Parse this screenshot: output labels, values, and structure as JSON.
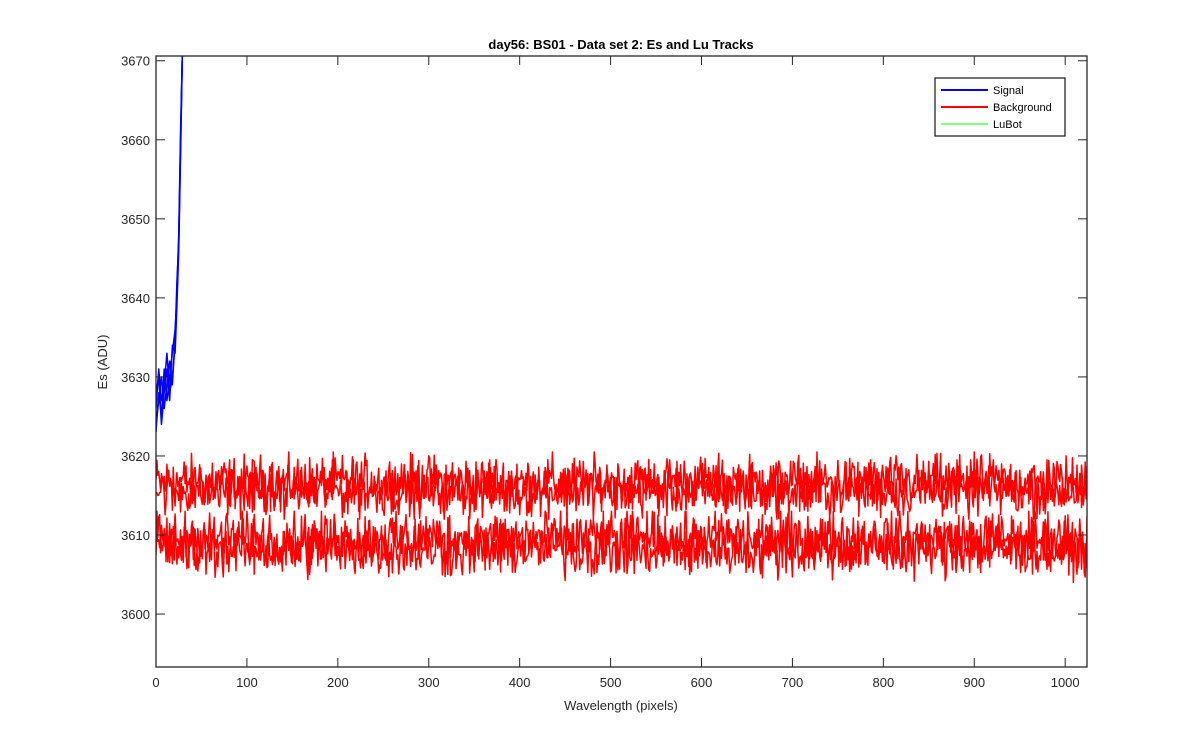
{
  "chart_data": {
    "type": "line",
    "title": "day56: BS01 - Data set 2: Es and Lu Tracks",
    "xlabel": "Wavelength (pixels)",
    "ylabel": "Es (ADU)",
    "xlim": [
      0,
      1024
    ],
    "ylim": [
      3593.3,
      3670.6
    ],
    "xticks": [
      0,
      100,
      200,
      300,
      400,
      500,
      600,
      700,
      800,
      900,
      1000
    ],
    "yticks": [
      3600,
      3610,
      3620,
      3630,
      3640,
      3650,
      3660,
      3670
    ],
    "grid": false,
    "legend_position": "top-right",
    "legend": [
      {
        "label": "Signal",
        "color": "#0000ff"
      },
      {
        "label": "Background",
        "color": "#ff0000"
      },
      {
        "label": "LuBot",
        "color": "#00ff00"
      }
    ],
    "series": [
      {
        "name": "Signal",
        "color": "#0000ff",
        "lines": [
          {
            "x": [
              0,
              3,
              6,
              9,
              12,
              15,
              18,
              21,
              23,
              25,
              27,
              29
            ],
            "y": [
              3623,
              3628,
              3625,
              3631,
              3627,
              3630,
              3633,
              3636,
              3640,
              3647,
              3660,
              3671
            ]
          },
          {
            "x": [
              0,
              3,
              6,
              9,
              12,
              15,
              18,
              21,
              23,
              25,
              27,
              29
            ],
            "y": [
              3626,
              3631,
              3627,
              3629,
              3633,
              3628,
              3630,
              3634,
              3641,
              3648,
              3661,
              3671
            ]
          },
          {
            "x": [
              0,
              3,
              6,
              9,
              12,
              15,
              18,
              21,
              23,
              25,
              27,
              29
            ],
            "y": [
              3624,
              3627,
              3630,
              3626,
              3629,
              3632,
              3629,
              3635,
              3642,
              3647,
              3659,
              3671
            ]
          },
          {
            "x": [
              0,
              3,
              6,
              9,
              12,
              15,
              18,
              21,
              23,
              25,
              27,
              29
            ],
            "y": [
              3628,
              3630,
              3624,
              3628,
              3631,
              3627,
              3634,
              3633,
              3639,
              3646,
              3658,
              3671
            ]
          }
        ]
      },
      {
        "name": "Background",
        "color": "#ff0000",
        "lines": [
          {
            "mean": 3616.7,
            "noise_range": [
              3613,
              3620.5
            ]
          },
          {
            "mean": 3615.6,
            "noise_range": [
              3612,
              3619.5
            ]
          },
          {
            "mean": 3609.6,
            "noise_range": [
              3605,
              3613
            ]
          },
          {
            "mean": 3608.2,
            "noise_range": [
              3604,
              3612
            ]
          }
        ]
      },
      {
        "name": "LuBot",
        "color": "#00ff00",
        "lines": []
      }
    ]
  }
}
